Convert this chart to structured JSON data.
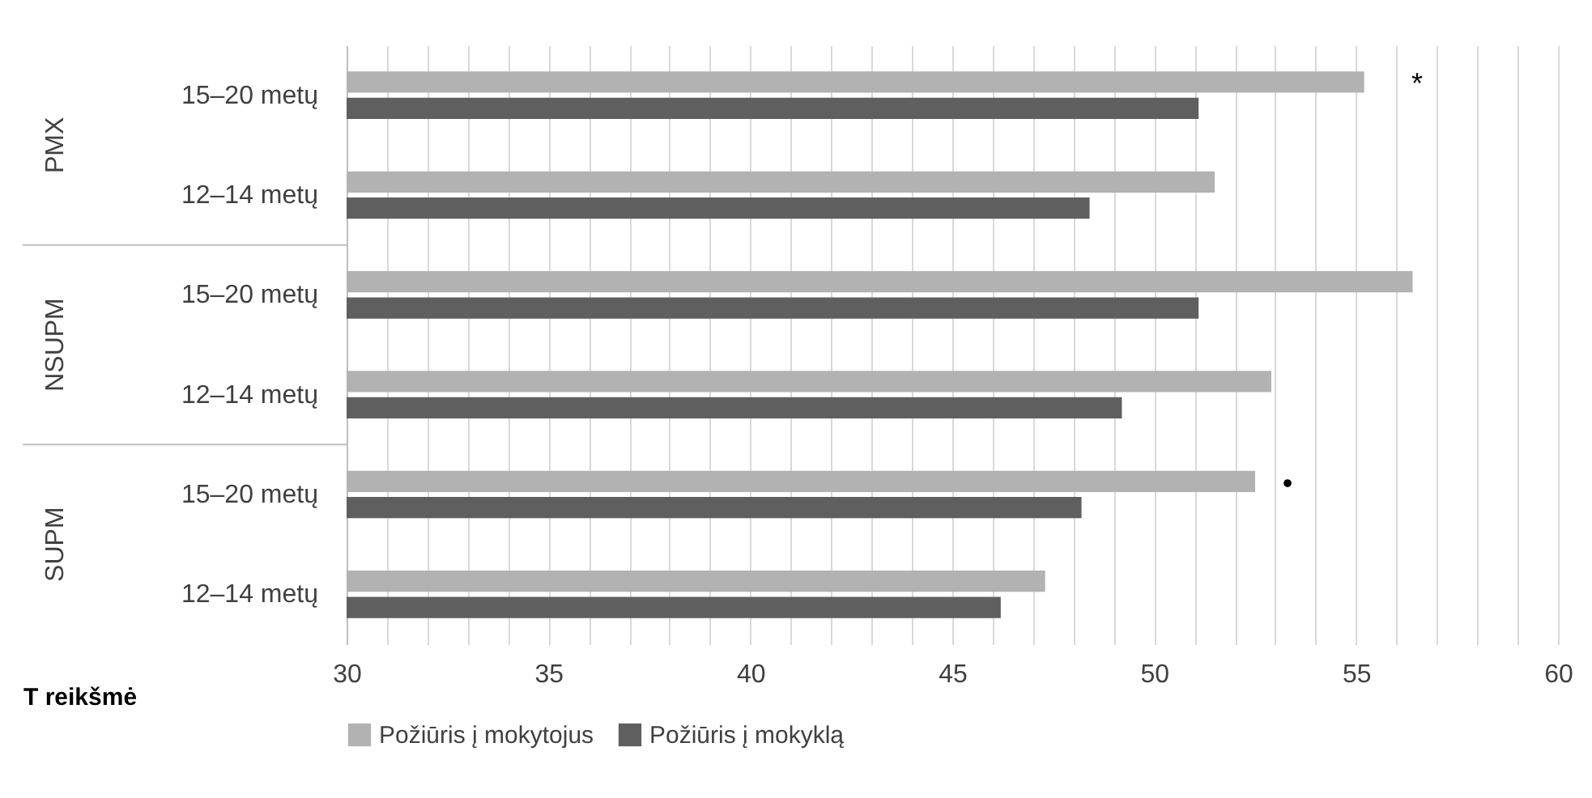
{
  "chart_data": {
    "type": "bar",
    "orientation": "horizontal",
    "categories": [
      "15–20 metų",
      "12–14 metų",
      "15–20 metų",
      "12–14 metų",
      "15–20 metų",
      "12–14 metų"
    ],
    "series": [
      {
        "name": "Požiūris į mokytojus",
        "color": "#b2b2b2",
        "values": [
          55.2,
          51.5,
          56.4,
          52.9,
          52.5,
          47.3
        ]
      },
      {
        "name": "Požiūris į mokyklą",
        "color": "#5f5f5f",
        "values": [
          51.1,
          48.4,
          51.1,
          49.2,
          48.2,
          46.2
        ]
      }
    ],
    "xlabel": "T reikšmė",
    "xlim": [
      30,
      60
    ],
    "xticks": [
      30,
      {
        "value": 31,
        "label": null
      },
      {
        "value": 32,
        "label": null
      },
      {
        "value": 33,
        "label": null
      },
      {
        "value": 34,
        "label": null
      },
      35,
      {
        "value": 36,
        "label": null
      },
      {
        "value": 37,
        "label": null
      },
      {
        "value": 38,
        "label": null
      },
      {
        "value": 39,
        "label": null
      },
      40,
      {
        "value": 41,
        "label": null
      },
      {
        "value": 42,
        "label": null
      },
      {
        "value": 43,
        "label": null
      },
      {
        "value": 44,
        "label": null
      },
      45,
      {
        "value": 46,
        "label": null
      },
      {
        "value": 47,
        "label": null
      },
      {
        "value": 48,
        "label": null
      },
      {
        "value": 49,
        "label": null
      },
      50,
      {
        "value": 51,
        "label": null
      },
      {
        "value": 52,
        "label": null
      },
      {
        "value": 53,
        "label": null
      },
      {
        "value": 54,
        "label": null
      },
      55,
      {
        "value": 56,
        "label": null
      },
      {
        "value": 57,
        "label": null
      },
      {
        "value": 58,
        "label": null
      },
      {
        "value": 59,
        "label": null
      },
      60
    ],
    "grid": "x",
    "legend": "bottom",
    "annotations": [
      "PMX",
      "NSUPM",
      "SUPM",
      "*",
      "•"
    ]
  }
}
